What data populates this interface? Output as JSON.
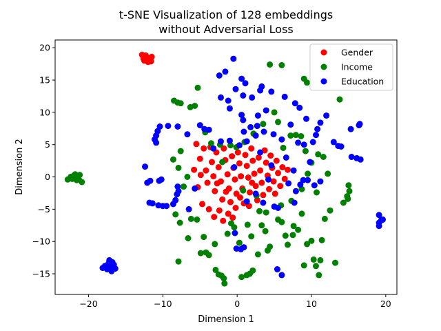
{
  "chart_data": {
    "type": "scatter",
    "title": "t-SNE Visualization of 128 embeddings",
    "subtitle": "without Adversarial Loss",
    "xlabel": "Dimension 1",
    "ylabel": "Dimension 2",
    "xlim": [
      -24.5,
      21.5
    ],
    "ylim": [
      -18.2,
      21.2
    ],
    "xticks": [
      -20,
      -10,
      0,
      10,
      20
    ],
    "yticks": [
      -15,
      -10,
      -5,
      0,
      5,
      10,
      15,
      20
    ],
    "grid": false,
    "legend_position": "top-right",
    "series": [
      {
        "name": "Gender",
        "color": "#ff0000",
        "points": [
          [
            -12.8,
            18.9
          ],
          [
            -12.2,
            18.5
          ],
          [
            -11.8,
            18.2
          ],
          [
            -12.5,
            18.0
          ],
          [
            -11.5,
            18.6
          ],
          [
            -12.0,
            17.8
          ],
          [
            -11.6,
            17.9
          ],
          [
            -12.3,
            18.8
          ],
          [
            -11.9,
            18.4
          ],
          [
            -12.6,
            18.3
          ],
          [
            -5.5,
            5.1
          ],
          [
            -5.0,
            2.8
          ],
          [
            -5.8,
            1.1
          ],
          [
            -4.5,
            4.4
          ],
          [
            -4.2,
            1.0
          ],
          [
            -4.0,
            -0.9
          ],
          [
            -3.6,
            4.6
          ],
          [
            -3.4,
            2.3
          ],
          [
            -3.2,
            0.1
          ],
          [
            -3.0,
            -2.2
          ],
          [
            -2.8,
            3.8
          ],
          [
            -2.5,
            1.5
          ],
          [
            -2.2,
            -0.7
          ],
          [
            -2.0,
            -3.5
          ],
          [
            -1.8,
            4.4
          ],
          [
            -1.6,
            2.6
          ],
          [
            -1.3,
            0.4
          ],
          [
            -1.1,
            -1.8
          ],
          [
            -0.9,
            -3.9
          ],
          [
            -0.7,
            3.2
          ],
          [
            -0.5,
            1.4
          ],
          [
            -0.3,
            -0.4
          ],
          [
            -0.1,
            -2.6
          ],
          [
            0.1,
            3.8
          ],
          [
            0.3,
            2.1
          ],
          [
            0.5,
            0.1
          ],
          [
            0.7,
            -1.8
          ],
          [
            0.9,
            -4.1
          ],
          [
            1.1,
            3.4
          ],
          [
            1.3,
            1.7
          ],
          [
            1.5,
            -0.1
          ],
          [
            1.7,
            -2.4
          ],
          [
            1.9,
            4.4
          ],
          [
            2.1,
            2.5
          ],
          [
            2.3,
            0.5
          ],
          [
            2.5,
            -1.4
          ],
          [
            2.7,
            -3.6
          ],
          [
            2.9,
            3.0
          ],
          [
            3.1,
            1.0
          ],
          [
            3.3,
            -0.9
          ],
          [
            3.5,
            -2.8
          ],
          [
            3.7,
            4.1
          ],
          [
            3.9,
            2.2
          ],
          [
            4.1,
            0.2
          ],
          [
            4.3,
            -1.9
          ],
          [
            4.5,
            3.3
          ],
          [
            4.7,
            1.4
          ],
          [
            4.9,
            -0.7
          ],
          [
            5.1,
            -2.6
          ],
          [
            5.3,
            2.5
          ],
          [
            5.5,
            0.6
          ],
          [
            5.8,
            -1.4
          ],
          [
            6.1,
            1.5
          ],
          [
            6.4,
            -0.3
          ],
          [
            6.8,
            1.1
          ],
          [
            -4.7,
            -4.2
          ],
          [
            -3.8,
            -5.0
          ],
          [
            -3.1,
            -6.2
          ],
          [
            -2.4,
            -5.2
          ],
          [
            -1.9,
            -6.8
          ],
          [
            -1.2,
            -5.7
          ],
          [
            -0.6,
            -6.3
          ],
          [
            -0.2,
            -4.8
          ],
          [
            -5.3,
            -1.6
          ],
          [
            -4.9,
            0.3
          ],
          [
            -2.7,
            -1.0
          ],
          [
            -1.5,
            -2.3
          ],
          [
            0.4,
            -3.2
          ],
          [
            1.6,
            -4.5
          ],
          [
            2.0,
            -0.9
          ]
        ]
      },
      {
        "name": "Income",
        "color": "#008000",
        "points": [
          [
            -22.2,
            -0.3
          ],
          [
            -21.8,
            0.4
          ],
          [
            -21.5,
            -0.2
          ],
          [
            -22.0,
            0.2
          ],
          [
            -21.2,
            0.3
          ],
          [
            -21.6,
            -0.5
          ],
          [
            -22.4,
            0.0
          ],
          [
            -21.3,
            -0.4
          ],
          [
            -20.9,
            -0.8
          ],
          [
            -22.8,
            -0.4
          ],
          [
            -8.5,
            11.8
          ],
          [
            -8.0,
            11.5
          ],
          [
            -7.6,
            11.4
          ],
          [
            -6.3,
            10.8
          ],
          [
            -5.7,
            11.0
          ],
          [
            -5.3,
            13.8
          ],
          [
            4.4,
            17.4
          ],
          [
            6.0,
            17.3
          ],
          [
            9.0,
            15.2
          ],
          [
            9.4,
            14.6
          ],
          [
            13.8,
            12.0
          ],
          [
            -8.6,
            2.7
          ],
          [
            -7.6,
            4.0
          ],
          [
            -8.3,
            -5.8
          ],
          [
            -7.7,
            -7.1
          ],
          [
            -6.6,
            -9.5
          ],
          [
            -5.4,
            -6.6
          ],
          [
            -4.5,
            -9.3
          ],
          [
            -4.2,
            -11.7
          ],
          [
            -3.8,
            -12.1
          ],
          [
            -3.0,
            -10.4
          ],
          [
            -2.9,
            -14.4
          ],
          [
            -2.5,
            -15.1
          ],
          [
            -2.1,
            -15.3
          ],
          [
            -1.8,
            -15.7
          ],
          [
            -1.7,
            -16.5
          ],
          [
            -1.3,
            -8.8
          ],
          [
            -0.8,
            -7.2
          ],
          [
            0.6,
            -15.5
          ],
          [
            1.3,
            -15.2
          ],
          [
            1.7,
            -15.0
          ],
          [
            2.1,
            -14.5
          ],
          [
            1.9,
            -9.2
          ],
          [
            3.3,
            -7.5
          ],
          [
            3.8,
            -8.4
          ],
          [
            4.4,
            -10.8
          ],
          [
            5.5,
            -6.6
          ],
          [
            6.0,
            -7.0
          ],
          [
            6.5,
            -9.1
          ],
          [
            7.5,
            -9.0
          ],
          [
            7.6,
            -7.6
          ],
          [
            8.2,
            -8.2
          ],
          [
            8.7,
            -5.7
          ],
          [
            9.0,
            -13.7
          ],
          [
            9.4,
            -10.4
          ],
          [
            10.0,
            -9.9
          ],
          [
            10.3,
            -12.8
          ],
          [
            10.6,
            -13.8
          ],
          [
            11.0,
            -15.2
          ],
          [
            11.2,
            -12.9
          ],
          [
            11.4,
            -9.8
          ],
          [
            11.8,
            -6.5
          ],
          [
            12.5,
            -5.2
          ],
          [
            13.2,
            -13.3
          ],
          [
            14.3,
            -4.0
          ],
          [
            14.8,
            -3.0
          ],
          [
            15.0,
            -1.3
          ],
          [
            15.1,
            -2.2
          ],
          [
            14.9,
            -3.4
          ],
          [
            12.2,
            0.5
          ],
          [
            11.6,
            3.1
          ],
          [
            10.9,
            3.5
          ],
          [
            10.0,
            2.2
          ],
          [
            9.2,
            4.0
          ],
          [
            8.6,
            6.3
          ],
          [
            7.9,
            6.5
          ],
          [
            7.2,
            6.4
          ],
          [
            6.2,
            4.5
          ],
          [
            5.0,
            10.0
          ],
          [
            5.5,
            8.5
          ],
          [
            3.5,
            8.2
          ],
          [
            2.2,
            6.7
          ],
          [
            1.0,
            5.4
          ],
          [
            -0.1,
            4.6
          ],
          [
            -0.9,
            4.9
          ],
          [
            -2.0,
            2.3
          ],
          [
            -2.3,
            5.0
          ],
          [
            -3.5,
            5.2
          ],
          [
            -4.3,
            6.9
          ],
          [
            -6.2,
            -6.5
          ],
          [
            -7.2,
            -1.5
          ],
          [
            -7.9,
            1.4
          ],
          [
            -6.7,
            0.0
          ],
          [
            0.8,
            -2.1
          ],
          [
            2.6,
            -2.9
          ],
          [
            3.9,
            -5.5
          ],
          [
            5.9,
            -4.4
          ],
          [
            7.3,
            -3.7
          ],
          [
            8.7,
            -1.9
          ],
          [
            9.5,
            0.5
          ],
          [
            10.7,
            -2.4
          ],
          [
            -0.4,
            -7.8
          ],
          [
            0.3,
            -10.2
          ],
          [
            2.8,
            -12.0
          ],
          [
            4.1,
            -11.4
          ],
          [
            6.8,
            -10.5
          ],
          [
            -7.9,
            -13.1
          ],
          [
            -4.9,
            -11.8
          ],
          [
            1.4,
            -7.4
          ],
          [
            3.0,
            -5.3
          ]
        ]
      },
      {
        "name": "Education",
        "color": "#0000ff",
        "points": [
          [
            -17.8,
            -13.8
          ],
          [
            -17.3,
            -13.4
          ],
          [
            -17.0,
            -13.9
          ],
          [
            -16.8,
            -13.2
          ],
          [
            -17.5,
            -14.3
          ],
          [
            -16.9,
            -14.6
          ],
          [
            -16.6,
            -13.6
          ],
          [
            -17.2,
            -12.9
          ],
          [
            -18.1,
            -14.1
          ],
          [
            -16.4,
            -14.2
          ],
          [
            -0.5,
            18.3
          ],
          [
            -1.6,
            16.3
          ],
          [
            -2.4,
            15.7
          ],
          [
            0.6,
            15.2
          ],
          [
            1.1,
            14.5
          ],
          [
            3.3,
            14.0
          ],
          [
            3.1,
            13.4
          ],
          [
            2.0,
            12.3
          ],
          [
            0.8,
            12.6
          ],
          [
            -0.2,
            13.6
          ],
          [
            -2.2,
            12.3
          ],
          [
            -1.2,
            11.8
          ],
          [
            -1.0,
            10.6
          ],
          [
            0.6,
            9.6
          ],
          [
            0.8,
            8.8
          ],
          [
            0.9,
            7.0
          ],
          [
            1.8,
            7.7
          ],
          [
            2.7,
            7.9
          ],
          [
            2.8,
            9.5
          ],
          [
            3.9,
            10.3
          ],
          [
            4.6,
            13.2
          ],
          [
            6.4,
            12.4
          ],
          [
            7.8,
            11.4
          ],
          [
            8.4,
            10.7
          ],
          [
            9.3,
            9.0
          ],
          [
            10.6,
            6.5
          ],
          [
            10.8,
            7.4
          ],
          [
            11.2,
            8.4
          ],
          [
            12.0,
            9.5
          ],
          [
            10.2,
            5.4
          ],
          [
            9.0,
            5.0
          ],
          [
            8.2,
            5.3
          ],
          [
            7.2,
            8.1
          ],
          [
            6.0,
            5.8
          ],
          [
            4.9,
            6.6
          ],
          [
            3.6,
            7.0
          ],
          [
            2.5,
            6.4
          ],
          [
            1.3,
            5.5
          ],
          [
            0.3,
            4.9
          ],
          [
            -1.0,
            5.6
          ],
          [
            -2.2,
            5.5
          ],
          [
            -3.2,
            4.4
          ],
          [
            -3.8,
            7.3
          ],
          [
            -4.4,
            7.4
          ],
          [
            -5.0,
            8.0
          ],
          [
            -6.7,
            6.6
          ],
          [
            -8.0,
            7.8
          ],
          [
            -9.3,
            7.9
          ],
          [
            -10.4,
            7.8
          ],
          [
            -10.7,
            7.1
          ],
          [
            -10.9,
            6.4
          ],
          [
            -11.1,
            5.8
          ],
          [
            -10.9,
            5.3
          ],
          [
            -12.4,
            1.6
          ],
          [
            -12.1,
            -0.9
          ],
          [
            -11.7,
            -0.6
          ],
          [
            -10.5,
            -0.6
          ],
          [
            -10.2,
            -0.4
          ],
          [
            -8.0,
            -1.5
          ],
          [
            -7.9,
            -2.2
          ],
          [
            -8.1,
            -2.7
          ],
          [
            -8.3,
            -3.6
          ],
          [
            -8.6,
            -4.2
          ],
          [
            -10.0,
            -4.5
          ],
          [
            -10.6,
            -4.4
          ],
          [
            -11.4,
            -4.1
          ],
          [
            -11.8,
            -4.0
          ],
          [
            -9.5,
            -4.5
          ],
          [
            -6.5,
            -5.0
          ],
          [
            -5.7,
            -1.8
          ],
          [
            -0.3,
            -8.7
          ],
          [
            -0.1,
            -11.1
          ],
          [
            0.5,
            -11.2
          ],
          [
            0.9,
            -10.9
          ],
          [
            3.5,
            -4.0
          ],
          [
            5.0,
            -4.6
          ],
          [
            5.5,
            -4.8
          ],
          [
            5.4,
            -14.3
          ],
          [
            6.0,
            -15.2
          ],
          [
            7.7,
            -4.0
          ],
          [
            7.9,
            -2.2
          ],
          [
            8.9,
            -0.5
          ],
          [
            9.5,
            -0.5
          ],
          [
            10.4,
            -1.3
          ],
          [
            11.2,
            -0.7
          ],
          [
            13.0,
            5.4
          ],
          [
            13.6,
            4.8
          ],
          [
            14.0,
            4.7
          ],
          [
            15.4,
            3.1
          ],
          [
            16.1,
            2.9
          ],
          [
            16.6,
            2.7
          ],
          [
            15.3,
            7.4
          ],
          [
            16.4,
            8.0
          ],
          [
            16.5,
            8.2
          ],
          [
            19.1,
            -5.9
          ],
          [
            19.1,
            -7.1
          ],
          [
            19.4,
            -6.7
          ],
          [
            19.1,
            -7.6
          ],
          [
            19.6,
            -6.6
          ],
          [
            8.5,
            -1.2
          ],
          [
            7.6,
            1.0
          ],
          [
            6.6,
            3.0
          ],
          [
            4.6,
            1.8
          ],
          [
            3.1,
            3.8
          ],
          [
            -0.4,
            1.5
          ],
          [
            1.3,
            -3.8
          ],
          [
            2.5,
            -2.6
          ],
          [
            4.2,
            -0.4
          ],
          [
            6.9,
            -1.0
          ],
          [
            9.8,
            2.3
          ]
        ]
      }
    ]
  }
}
